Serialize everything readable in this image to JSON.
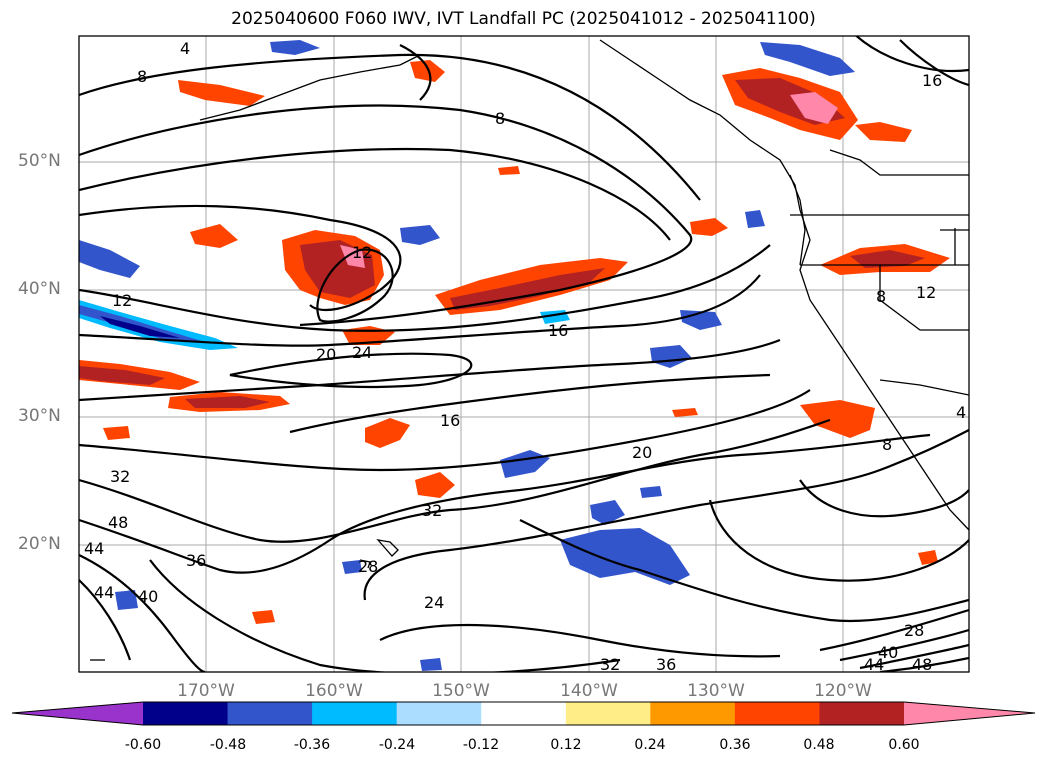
{
  "title": "2025040600 F060 IWV, IVT Landfall PC (2025041012 - 2025041100)",
  "lat_labels": [
    "50°N",
    "40°N",
    "30°N",
    "20°N"
  ],
  "lon_labels": [
    "170°W",
    "160°W",
    "150°W",
    "140°W",
    "130°W",
    "120°W"
  ],
  "contour_labels": [
    "4",
    "8",
    "8",
    "16",
    "12",
    "12",
    "16",
    "20",
    "24",
    "16",
    "20",
    "32",
    "32",
    "48",
    "44",
    "36",
    "28",
    "44",
    "40",
    "24",
    "32",
    "36",
    "8",
    "12",
    "8",
    "4",
    "28",
    "40",
    "48",
    "44"
  ],
  "colorbar": {
    "ticks": [
      "-0.60",
      "-0.48",
      "-0.36",
      "-0.24",
      "-0.12",
      "0.12",
      "0.24",
      "0.36",
      "0.48",
      "0.60"
    ],
    "colors": [
      "#9933cc",
      "#00008b",
      "#3355cc",
      "#00bbff",
      "#aaddff",
      "#ffffff",
      "#ffee88",
      "#ff9900",
      "#ff4400",
      "#b22222",
      "#ff88aa",
      "#ff88aa"
    ]
  }
}
